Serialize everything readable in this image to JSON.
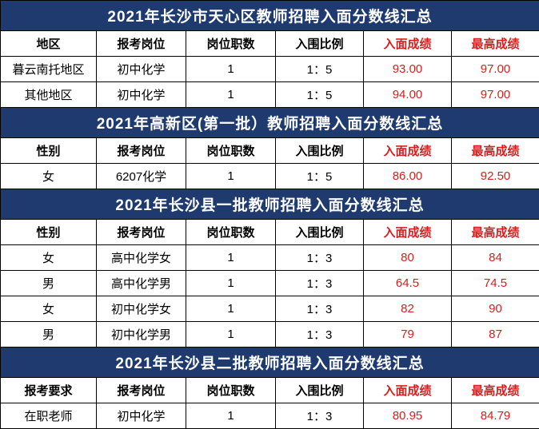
{
  "sections": [
    {
      "title": "2021年长沙市天心区教师招聘入面分数线汇总",
      "headers": [
        "地区",
        "报考岗位",
        "岗位职数",
        "入围比例",
        "入面成绩",
        "最高成绩"
      ],
      "rows": [
        [
          "暮云南托地区",
          "初中化学",
          "1",
          "1：5",
          "93.00",
          "97.00"
        ],
        [
          "其他地区",
          "初中化学",
          "1",
          "1：5",
          "94.00",
          "97.00"
        ]
      ]
    },
    {
      "title": "2021年高新区(第一批）教师招聘入面分数线汇总",
      "headers": [
        "性别",
        "报考岗位",
        "岗位职数",
        "入围比例",
        "入面成绩",
        "最高成绩"
      ],
      "rows": [
        [
          "女",
          "6207化学",
          "1",
          "1：5",
          "86.00",
          "92.50"
        ]
      ]
    },
    {
      "title": "2021年长沙县一批教师招聘入面分数线汇总",
      "headers": [
        "性别",
        "报考岗位",
        "岗位职数",
        "入围比例",
        "入面成绩",
        "最高成绩"
      ],
      "rows": [
        [
          "女",
          "高中化学女",
          "1",
          "1：3",
          "80",
          "84"
        ],
        [
          "男",
          "高中化学男",
          "1",
          "1：3",
          "64.5",
          "74.5"
        ],
        [
          "女",
          "初中化学女",
          "1",
          "1：3",
          "82",
          "90"
        ],
        [
          "男",
          "初中化学男",
          "1",
          "1：3",
          "79",
          "87"
        ]
      ]
    },
    {
      "title": "2021年长沙县二批教师招聘入面分数线汇总",
      "headers": [
        "报考要求",
        "报考岗位",
        "岗位职数",
        "入围比例",
        "入面成绩",
        "最高成绩"
      ],
      "rows": [
        [
          "在职老师",
          "初中化学",
          "1",
          "1：3",
          "80.95",
          "84.79"
        ]
      ]
    }
  ],
  "colors": {
    "title_bg": "#1e3a6e",
    "title_fg": "#ffffff",
    "border": "#000000",
    "red": "#d6201f",
    "cell_bg": "#ffffff"
  }
}
